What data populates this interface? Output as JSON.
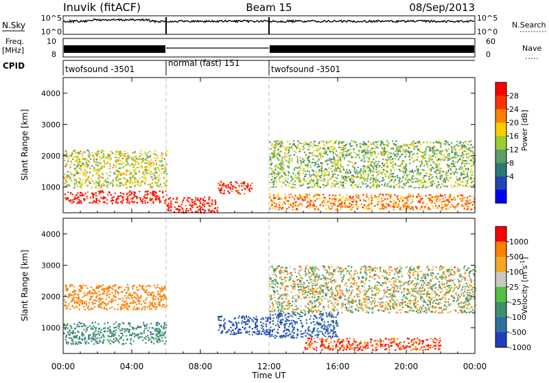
{
  "header": {
    "station": "Inuvik (fitACF)",
    "beam": "Beam 15",
    "date": "08/Sep/2013"
  },
  "top_panels": {
    "nsky_label": "N.Sky",
    "nsky_ticks": [
      "10^5",
      "10^0"
    ],
    "nsearch_label": "N.Search",
    "nsearch_ticks": [
      "10^5",
      "10^0"
    ],
    "freq_label": "Freq.",
    "freq_unit": "[MHz]",
    "freq_ticks": [
      "10",
      "8"
    ],
    "nave_label": "Nave",
    "nave_ticks": [
      "60",
      "0"
    ],
    "cpid_label": "CPID"
  },
  "cpid_segments": [
    {
      "label": "twofsound -3501",
      "start_hour": 0,
      "end_hour": 6
    },
    {
      "label": "normal (fast) 151",
      "start_hour": 6,
      "end_hour": 12
    },
    {
      "label": "twofsound -3501",
      "start_hour": 12,
      "end_hour": 24
    }
  ],
  "panels": {
    "power": {
      "ylabel": "Slant Range [km]",
      "yticks": [
        "4000",
        "3000",
        "2000",
        "1000"
      ],
      "colorbar_label": "Power [dB]",
      "colorbar_ticks": [
        "28",
        "24",
        "20",
        "16",
        "12",
        "8",
        "4"
      ],
      "colors": [
        "#0000ff",
        "#1f45b0",
        "#2a7a74",
        "#5a9c6a",
        "#9acd32",
        "#ffcc00",
        "#ff8000",
        "#ff3300",
        "#ff0000"
      ]
    },
    "velocity": {
      "ylabel": "Slant Range [km]",
      "yticks": [
        "4000",
        "3000",
        "2000",
        "1000"
      ],
      "colorbar_label": "Velocity [m s",
      "colorbar_label_sup": "-1",
      "colorbar_label_end": "]",
      "colorbar_ticks": [
        "1000",
        "500",
        "100",
        "25",
        "-25",
        "-100",
        "-500",
        "-1000"
      ],
      "colors": [
        "#1f3fbf",
        "#2e6fa3",
        "#3f8f6f",
        "#55c040",
        "#c8c8c0",
        "#f5a623",
        "#ff7f00",
        "#ff0000"
      ]
    }
  },
  "xaxis": {
    "label": "Time UT",
    "ticks": [
      "00:00",
      "04:00",
      "08:00",
      "12:00",
      "16:00",
      "20:00",
      "00:00"
    ]
  },
  "chart_data": [
    {
      "type": "heatmap",
      "title": "Inuvik (fitACF) Beam 15 08/Sep/2013",
      "quantity": "Power [dB]",
      "xlabel": "Time UT",
      "ylabel": "Slant Range [km]",
      "xlim_hours": [
        0,
        24
      ],
      "ylim_km": [
        180,
        4500
      ],
      "clim": [
        0,
        30
      ],
      "summary_bands": [
        {
          "hour_start": 0,
          "hour_end": 6,
          "range_km": [
            500,
            900
          ],
          "power_db": 28
        },
        {
          "hour_start": 0,
          "hour_end": 6,
          "range_km": [
            1000,
            2200
          ],
          "power_db": 16
        },
        {
          "hour_start": 6,
          "hour_end": 9,
          "range_km": [
            200,
            700
          ],
          "power_db": 28
        },
        {
          "hour_start": 9,
          "hour_end": 11,
          "range_km": [
            800,
            1200
          ],
          "power_db": 26
        },
        {
          "hour_start": 12,
          "hour_end": 24,
          "range_km": [
            1000,
            2500
          ],
          "power_db": 14
        },
        {
          "hour_start": 12,
          "hour_end": 24,
          "range_km": [
            300,
            800
          ],
          "power_db": 22
        }
      ]
    },
    {
      "type": "heatmap",
      "title": "Inuvik (fitACF) Beam 15 08/Sep/2013",
      "quantity": "Velocity [m s-1]",
      "xlabel": "Time UT",
      "ylabel": "Slant Range [km]",
      "xlim_hours": [
        0,
        24
      ],
      "ylim_km": [
        180,
        4500
      ],
      "clim": [
        -1000,
        1000
      ],
      "summary_bands": [
        {
          "hour_start": 0,
          "hour_end": 6,
          "range_km": [
            500,
            1200
          ],
          "velocity": 200
        },
        {
          "hour_start": 0,
          "hour_end": 6,
          "range_km": [
            1600,
            2400
          ],
          "velocity": -300
        },
        {
          "hour_start": 9,
          "hour_end": 12,
          "range_km": [
            800,
            1400
          ],
          "velocity": 800
        },
        {
          "hour_start": 12,
          "hour_end": 16,
          "range_km": [
            700,
            1500
          ],
          "velocity": 700
        },
        {
          "hour_start": 14,
          "hour_end": 22,
          "range_km": [
            300,
            700
          ],
          "velocity": -500
        },
        {
          "hour_start": 12,
          "hour_end": 24,
          "range_km": [
            1500,
            3000
          ],
          "velocity": 0
        }
      ]
    }
  ]
}
